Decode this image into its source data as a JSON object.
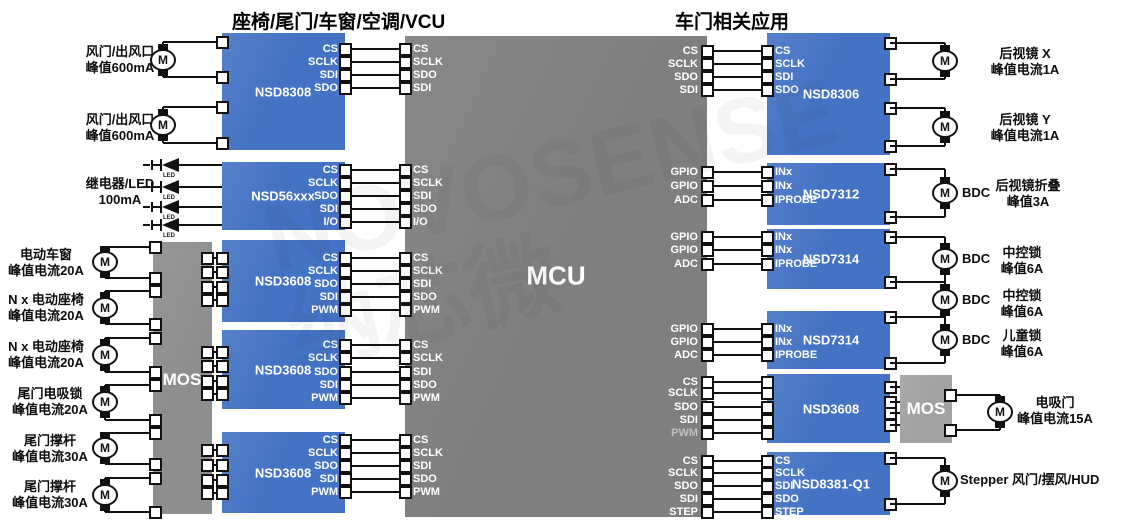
{
  "titles": {
    "left": "座椅/尾门/车窗/空调/VCU",
    "right": "车门相关应用"
  },
  "mcu": {
    "label": "MCU"
  },
  "mos_left": {
    "label": "MOS"
  },
  "mos_right": {
    "label": "MOS"
  },
  "watermark": {
    "text": "NOVOSENSE 纳芯微"
  },
  "motor_letter": "M",
  "bdc_label": "BDC",
  "led_caption": "LED",
  "colors": {
    "chip_blue": "#4472C4",
    "mcu_gray": "#7f7f7f",
    "mos_gray": "#8e8e8e",
    "mos_gray_light": "#a2a2a2",
    "wire": "#111111"
  },
  "left_chips": [
    {
      "name": "NSD8308",
      "chip_pins": [
        "CS",
        "SCLK",
        "SDI",
        "SDO"
      ],
      "mcu_pins": [
        "CS",
        "SCLK",
        "SDO",
        "SDI"
      ]
    },
    {
      "name": "NSD56xxx",
      "chip_pins": [
        "CS",
        "SCLK",
        "SDO",
        "SDI",
        "I/O"
      ],
      "mcu_pins": [
        "CS",
        "SCLK",
        "SDI",
        "SDO",
        "I/O"
      ]
    },
    {
      "name": "NSD3608",
      "chip_pins": [
        "CS",
        "SCLK",
        "SDO",
        "SDI",
        "PWM"
      ],
      "mcu_pins": [
        "CS",
        "SCLK",
        "SDI",
        "SDO",
        "PWM"
      ]
    },
    {
      "name": "NSD3608",
      "chip_pins": [
        "CS",
        "SCLK",
        "SDO",
        "SDI",
        "PWM"
      ],
      "mcu_pins": [
        "CS",
        "SCLK",
        "SDI",
        "SDO",
        "PWM"
      ]
    },
    {
      "name": "NSD3608",
      "chip_pins": [
        "CS",
        "SCLK",
        "SDO",
        "SDI",
        "PWM"
      ],
      "mcu_pins": [
        "CS",
        "SCLK",
        "SDI",
        "SDO",
        "PWM"
      ]
    }
  ],
  "right_chips": [
    {
      "name": "NSD8306",
      "chip_pins": [
        "CS",
        "SCLK",
        "SDI",
        "SDO"
      ],
      "mcu_pins": [
        "CS",
        "SCLK",
        "SDO",
        "SDI"
      ]
    },
    {
      "name": "NSD7312",
      "chip_pins": [
        "INx",
        "INx",
        "IPROBE"
      ],
      "mcu_pins": [
        "GPIO",
        "GPIO",
        "ADC"
      ]
    },
    {
      "name": "NSD7314",
      "chip_pins": [
        "INx",
        "INx",
        "IPROBE"
      ],
      "mcu_pins": [
        "GPIO",
        "GPIO",
        "ADC"
      ]
    },
    {
      "name": "NSD7314",
      "chip_pins": [
        "INx",
        "INx",
        "IPROBE"
      ],
      "mcu_pins": [
        "GPIO",
        "GPIO",
        "ADC"
      ]
    },
    {
      "name": "NSD3608",
      "chip_pins": [
        "",
        "",
        "",
        "",
        ""
      ],
      "mcu_pins": [
        "CS",
        "SCLK",
        "SDO",
        "SDI",
        "PWM"
      ]
    },
    {
      "name": "NSD8381-Q1",
      "chip_pins": [
        "CS",
        "SCLK",
        "SDI",
        "SDO",
        "STEP"
      ],
      "mcu_pins": [
        "CS",
        "SCLK",
        "SDO",
        "SDI",
        "STEP"
      ]
    }
  ],
  "left_loads": [
    {
      "line1": "风门/出风口",
      "line2": "峰值600mA"
    },
    {
      "line1": "风门/出风口",
      "line2": "峰值600mA"
    },
    {
      "line1": "继电器/LED",
      "line2": "100mA"
    },
    {
      "line1": "电动车窗",
      "line2": "峰值电流20A"
    },
    {
      "line1": "N x 电动座椅",
      "line2": "峰值电流20A"
    },
    {
      "line1": "N x 电动座椅",
      "line2": "峰值电流20A"
    },
    {
      "line1": "尾门电吸锁",
      "line2": "峰值电流20A"
    },
    {
      "line1": "尾门撑杆",
      "line2": "峰值电流30A"
    },
    {
      "line1": "尾门撑杆",
      "line2": "峰值电流30A"
    }
  ],
  "right_loads": [
    {
      "line1": "后视镜 X",
      "line2": "峰值电流1A"
    },
    {
      "line1": "后视镜 Y",
      "line2": "峰值电流1A"
    },
    {
      "line1": "后视镜折叠",
      "line2": "峰值3A"
    },
    {
      "line1": "中控锁",
      "line2": "峰值6A"
    },
    {
      "line1": "中控锁",
      "line2": "峰值6A"
    },
    {
      "line1": "儿童锁",
      "line2": "峰值6A"
    },
    {
      "line1": "电吸门",
      "line2": "峰值电流15A"
    },
    {
      "line1": "Stepper 风门/摆风/HUD",
      "line2": ""
    }
  ]
}
